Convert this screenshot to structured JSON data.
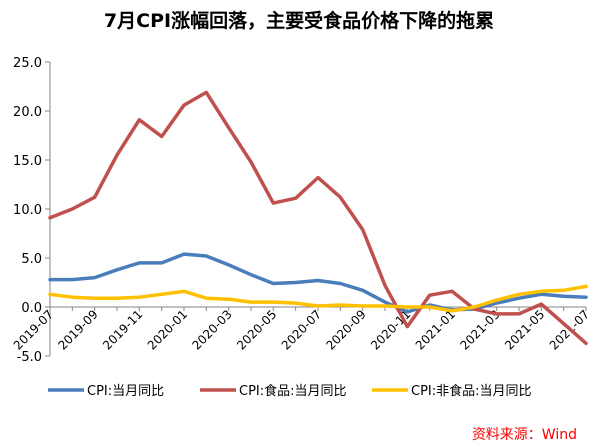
{
  "chart_data": {
    "type": "line",
    "title": "7月CPI涨幅回落，主要受食品价格下降的拖累",
    "source_note": "资料来源：Wind",
    "ylim": [
      -5,
      25
    ],
    "yticks": [
      "-5.0",
      "0.0",
      "5.0",
      "10.0",
      "15.0",
      "20.0",
      "25.0"
    ],
    "x_tick_labels": [
      "2019-07",
      "2019-09",
      "2019-11",
      "2020-01",
      "2020-03",
      "2020-05",
      "2020-07",
      "2020-09",
      "2020-11",
      "2021-01",
      "2021-03",
      "2021-05",
      "2021-07"
    ],
    "x": [
      "2019-07",
      "2019-08",
      "2019-09",
      "2019-10",
      "2019-11",
      "2019-12",
      "2020-01",
      "2020-02",
      "2020-03",
      "2020-04",
      "2020-05",
      "2020-06",
      "2020-07",
      "2020-08",
      "2020-09",
      "2020-10",
      "2020-11",
      "2020-12",
      "2021-01",
      "2021-02",
      "2021-03",
      "2021-04",
      "2021-05",
      "2021-06",
      "2021-07"
    ],
    "grid": false,
    "legend_position": "bottom",
    "series": [
      {
        "name": "CPI:当月同比",
        "color": "#4a7ebb",
        "values": [
          2.8,
          2.8,
          3.0,
          3.8,
          4.5,
          4.5,
          5.4,
          5.2,
          4.3,
          3.3,
          2.4,
          2.5,
          2.7,
          2.4,
          1.7,
          0.5,
          -0.5,
          0.2,
          -0.3,
          -0.2,
          0.4,
          0.9,
          1.3,
          1.1,
          1.0
        ]
      },
      {
        "name": "CPI:食品:当月同比",
        "color": "#c0504d",
        "values": [
          9.1,
          10.0,
          11.2,
          15.5,
          19.1,
          17.4,
          20.6,
          21.9,
          18.3,
          14.8,
          10.6,
          11.1,
          13.2,
          11.2,
          7.9,
          2.2,
          -2.0,
          1.2,
          1.6,
          -0.2,
          -0.7,
          -0.7,
          0.3,
          -1.7,
          -3.7
        ]
      },
      {
        "name": "CPI:非食品:当月同比",
        "color": "#ffc000",
        "values": [
          1.3,
          1.0,
          0.9,
          0.9,
          1.0,
          1.3,
          1.6,
          0.9,
          0.8,
          0.5,
          0.5,
          0.4,
          0.1,
          0.2,
          0.1,
          0.1,
          0.0,
          0.0,
          -0.4,
          0.0,
          0.7,
          1.3,
          1.6,
          1.7,
          2.1
        ]
      }
    ]
  }
}
